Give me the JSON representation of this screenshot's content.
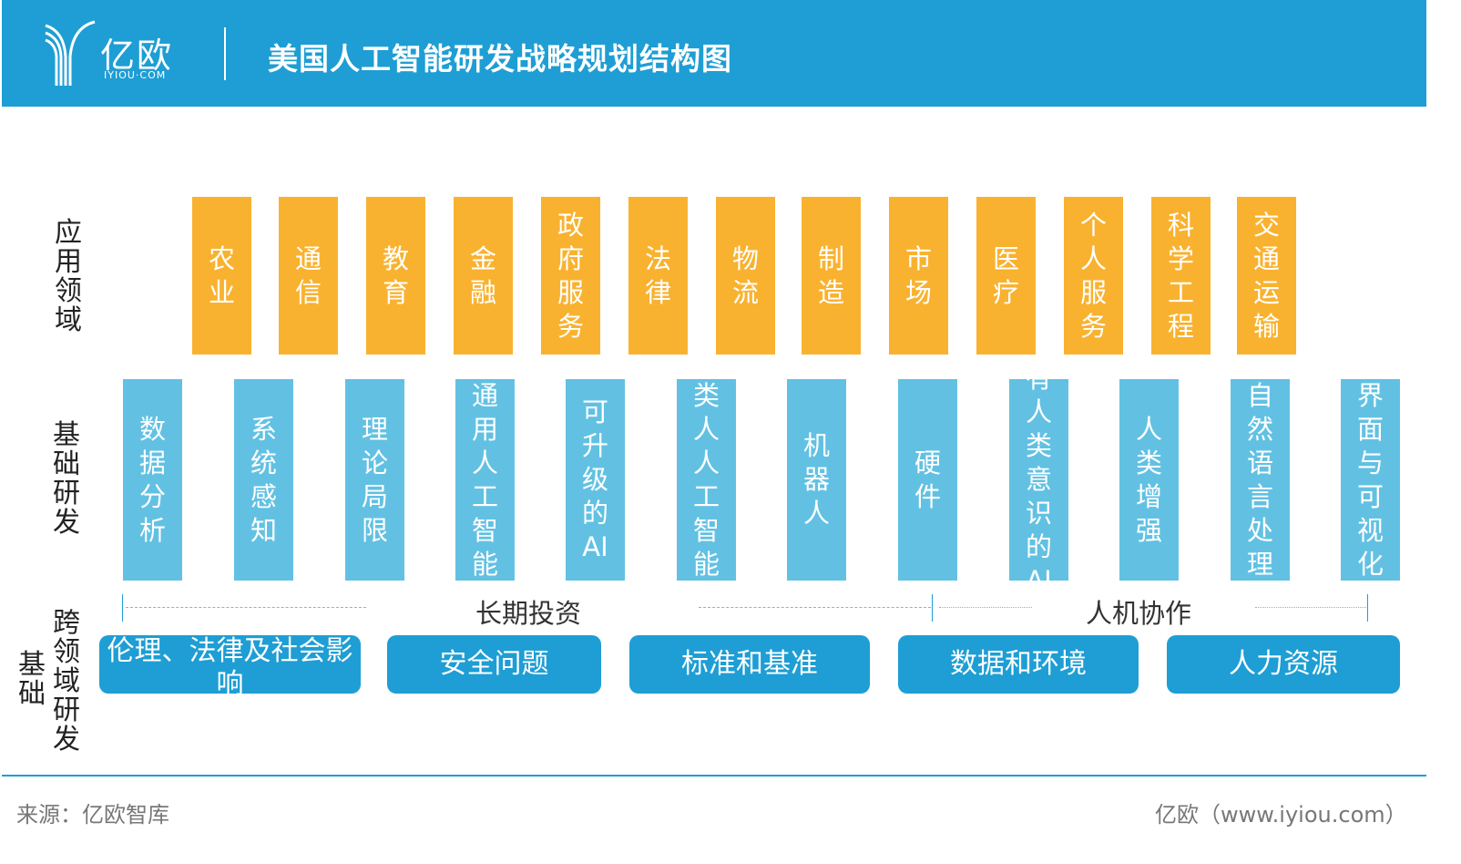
{
  "header": {
    "logo_text": "亿欧",
    "logo_sub": "IYIOU·COM",
    "title": "美国人工智能研发战略规划结构图"
  },
  "row_labels": {
    "application": "应用领域",
    "basic": "基础研发",
    "cross_a": "基础",
    "cross_b": "跨领域研发"
  },
  "applications": [
    "农业",
    "通信",
    "教育",
    "金融",
    "政府服务",
    "法律",
    "物流",
    "制造",
    "市场",
    "医疗",
    "个人服务",
    "科学工程",
    "交通运输"
  ],
  "basic_research": [
    "数据分析",
    "系统感知",
    "理论局限",
    "通用人工智能",
    "可升级的AI",
    "类人人工智能",
    "机器人",
    "硬件",
    "有人类意识的AI",
    "人类增强",
    "自然语言处理",
    "界面与可视化"
  ],
  "spans": {
    "long_term": "长期投资",
    "collab": "人机协作"
  },
  "cross_domain": [
    "伦理、法律及社会影响",
    "安全问题",
    "标准和基准",
    "数据和环境",
    "人力资源"
  ],
  "footer": {
    "source": "来源：亿欧智库",
    "site": "亿欧（www.iyiou.com）"
  },
  "colors": {
    "brand": "#1E9ED4",
    "application": "#F9B22F",
    "basic": "#62C1E3"
  }
}
